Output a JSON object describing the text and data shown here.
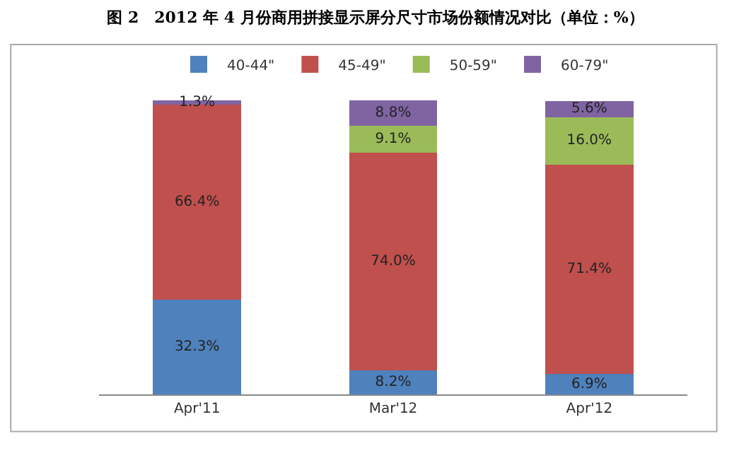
{
  "chart_data": {
    "type": "bar",
    "stacked": true,
    "title": "图 2　2012 年 4 月份商用拼接显示屏分尺寸市场份额情况对比（单位：%）",
    "categories": [
      "Apr'11",
      "Mar'12",
      "Apr'12"
    ],
    "series": [
      {
        "name": "40-44\"",
        "color": "#4f81bd",
        "values": [
          32.3,
          8.2,
          6.9
        ],
        "value_labels": [
          "32.3%",
          "8.2%",
          "6.9%"
        ]
      },
      {
        "name": "45-49\"",
        "color": "#c0504d",
        "values": [
          66.4,
          74.0,
          71.4
        ],
        "value_labels": [
          "66.4%",
          "74.0%",
          "71.4%"
        ]
      },
      {
        "name": "50-59\"",
        "color": "#9bbb59",
        "values": [
          null,
          9.1,
          16.0
        ],
        "value_labels": [
          null,
          "9.1%",
          "16.0%"
        ]
      },
      {
        "name": "60-79\"",
        "color": "#8064a2",
        "values": [
          1.3,
          8.8,
          5.6
        ],
        "value_labels": [
          "1.3%",
          "8.8%",
          "5.6%"
        ]
      }
    ],
    "legend": "top",
    "grid": false
  }
}
